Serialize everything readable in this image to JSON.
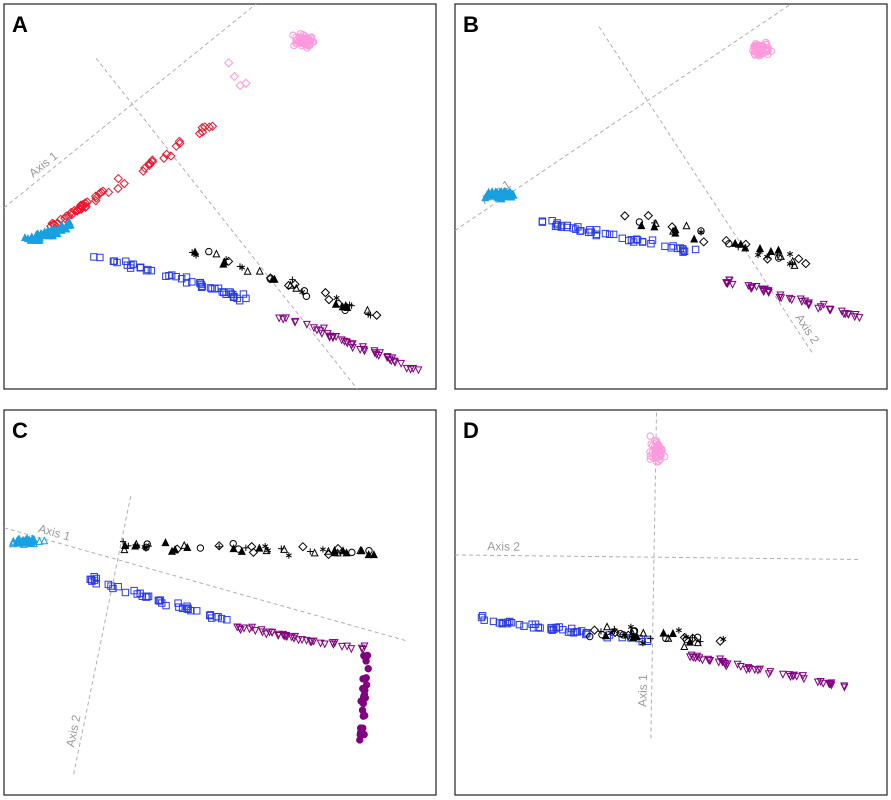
{
  "chart_data": [
    {
      "type": "scatter",
      "panel": "A",
      "axes": [
        {
          "name": "Axis 1",
          "style": "dashed",
          "from": [
            -2.0,
            -1.0
          ],
          "to": [
            5.0,
            6.2
          ]
        },
        {
          "name": "Axis 2",
          "style": "dashed",
          "from": [
            -0.4,
            2.3
          ],
          "to": [
            5.0,
            -6.4
          ]
        }
      ],
      "clusters": [
        {
          "color": "#ff99dd",
          "marker": "circle-open",
          "center": [
            3.2,
            2.7
          ],
          "spread": [
            0.25,
            0.18
          ],
          "count": 60
        },
        {
          "color": "#ff99dd",
          "marker": "diamond-open",
          "points": [
            [
              2.0,
              1.9
            ],
            [
              2.1,
              1.7
            ],
            [
              2.2,
              1.75
            ],
            [
              1.9,
              2.2
            ]
          ]
        },
        {
          "color": "#e8182c",
          "marker": "diamond-open",
          "line": [
            [
              -1.2,
              -1.4
            ],
            [
              1.6,
              0.8
            ]
          ],
          "spread": 0.12,
          "count": 55
        },
        {
          "color": "#18a0e0",
          "marker": "triangle-filled",
          "line": [
            [
              -1.6,
              -1.7
            ],
            [
              -0.8,
              -1.4
            ]
          ],
          "spread": 0.12,
          "count": 45
        },
        {
          "color": "#2a3de0",
          "marker": "square-open",
          "line": [
            [
              -0.5,
              -2.0
            ],
            [
              2.2,
              -3.0
            ]
          ],
          "spread": 0.1,
          "count": 45
        },
        {
          "color": "#000000",
          "marker": "mixed",
          "line": [
            [
              1.2,
              -1.9
            ],
            [
              4.5,
              -3.4
            ]
          ],
          "spread": 0.2,
          "count": 40
        },
        {
          "color": "#800080",
          "marker": "triangle-down-open",
          "line": [
            [
              2.8,
              -3.4
            ],
            [
              5.2,
              -4.6
            ]
          ],
          "spread": 0.1,
          "count": 45
        }
      ]
    },
    {
      "type": "scatter",
      "panel": "B",
      "axes": [
        {
          "name": "Axis 1",
          "style": "dashed",
          "from": [
            -2.0,
            -1.5
          ],
          "to": [
            5.0,
            4.5
          ]
        },
        {
          "name": "Axis 2",
          "style": "dashed",
          "from": [
            0.5,
            3.0
          ],
          "to": [
            4.2,
            -4.2
          ]
        }
      ],
      "clusters": [
        {
          "color": "#ff99dd",
          "marker": "circle-open",
          "center": [
            3.3,
            2.5
          ],
          "spread": [
            0.25,
            0.2
          ],
          "count": 55
        },
        {
          "color": "#18a0e0",
          "marker": "triangle-filled",
          "center": [
            -1.2,
            -0.7
          ],
          "spread": [
            0.35,
            0.15
          ],
          "count": 60
        },
        {
          "color": "#2a3de0",
          "marker": "square-open",
          "line": [
            [
              -0.5,
              -1.3
            ],
            [
              2.2,
              -2.0
            ]
          ],
          "spread": 0.1,
          "count": 45
        },
        {
          "color": "#000000",
          "marker": "mixed",
          "line": [
            [
              0.9,
              -1.2
            ],
            [
              4.3,
              -2.3
            ]
          ],
          "spread": 0.2,
          "count": 40
        },
        {
          "color": "#800080",
          "marker": "triangle-down-open",
          "line": [
            [
              2.6,
              -2.6
            ],
            [
              5.0,
              -3.4
            ]
          ],
          "spread": 0.1,
          "count": 45
        }
      ]
    },
    {
      "type": "scatter",
      "panel": "C",
      "axes": [
        {
          "name": "Axis 1",
          "style": "dashed",
          "from": [
            -2.0,
            0.9
          ],
          "to": [
            5.0,
            -1.6
          ]
        },
        {
          "name": "Axis 2",
          "style": "dashed",
          "from": [
            0.2,
            1.6
          ],
          "to": [
            -0.8,
            -4.6
          ]
        }
      ],
      "clusters": [
        {
          "color": "#18a0e0",
          "marker": "triangle-open",
          "center": [
            -1.6,
            0.6
          ],
          "spread": [
            0.35,
            0.08
          ],
          "count": 60
        },
        {
          "color": "#000000",
          "marker": "mixed",
          "line": [
            [
              0.0,
              0.5
            ],
            [
              4.6,
              0.35
            ]
          ],
          "spread": 0.15,
          "count": 55
        },
        {
          "color": "#2a3de0",
          "marker": "square-open",
          "line": [
            [
              -0.6,
              -0.2
            ],
            [
              2.0,
              -1.2
            ]
          ],
          "spread": 0.08,
          "count": 40
        },
        {
          "color": "#800080",
          "marker": "triangle-down-open",
          "line": [
            [
              2.0,
              -1.3
            ],
            [
              4.3,
              -1.8
            ]
          ],
          "spread": 0.08,
          "count": 40
        },
        {
          "color": "#800080",
          "marker": "circle-filled",
          "line": [
            [
              4.3,
              -1.9
            ],
            [
              4.2,
              -3.8
            ]
          ],
          "spread": 0.06,
          "count": 25
        }
      ]
    },
    {
      "type": "scatter",
      "panel": "D",
      "axes": [
        {
          "name": "Axis 2",
          "style": "dashed",
          "from": [
            -2.0,
            0.3
          ],
          "to": [
            5.0,
            0.2
          ]
        },
        {
          "name": "Axis 1",
          "style": "dashed",
          "from": [
            1.5,
            3.6
          ],
          "to": [
            1.4,
            -3.8
          ]
        }
      ],
      "clusters": [
        {
          "color": "#ff99dd",
          "marker": "circle-open",
          "center": [
            1.5,
            2.6
          ],
          "spread": [
            0.18,
            0.35
          ],
          "count": 50
        },
        {
          "color": "#2a3de0",
          "marker": "square-open",
          "line": [
            [
              -1.6,
              -1.1
            ],
            [
              1.4,
              -1.6
            ]
          ],
          "spread": 0.08,
          "count": 45
        },
        {
          "color": "#000000",
          "marker": "mixed",
          "line": [
            [
              0.4,
              -1.4
            ],
            [
              2.6,
              -1.6
            ]
          ],
          "spread": 0.25,
          "count": 40
        },
        {
          "color": "#800080",
          "marker": "triangle-down-open",
          "line": [
            [
              1.9,
              -1.9
            ],
            [
              4.8,
              -2.6
            ]
          ],
          "spread": 0.08,
          "count": 45
        }
      ]
    }
  ]
}
